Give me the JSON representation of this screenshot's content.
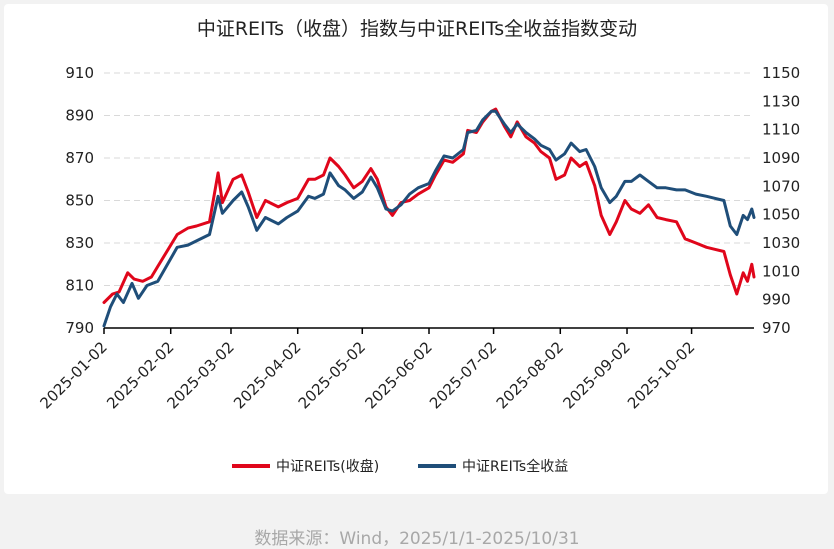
{
  "chart_data": {
    "type": "line",
    "title": "中证REITs（收盘）指数与中证REITs全收益指数变动",
    "source": "数据来源：Wind，2025/1/1-2025/10/31",
    "x_ticks": [
      "2025-01-02",
      "2025-02-02",
      "2025-03-02",
      "2025-04-02",
      "2025-05-02",
      "2025-06-02",
      "2025-07-02",
      "2025-08-02",
      "2025-09-02",
      "2025-10-02"
    ],
    "x_range": [
      "2025-01-02",
      "2025-10-31"
    ],
    "y_left": {
      "min": 790,
      "max": 910,
      "ticks": [
        "790",
        "810",
        "830",
        "850",
        "870",
        "890",
        "910"
      ]
    },
    "y_right": {
      "min": 970,
      "max": 1150,
      "ticks": [
        "970",
        "990",
        "1010",
        "1030",
        "1050",
        "1070",
        "1090",
        "1110",
        "1130",
        "1150"
      ]
    },
    "grid": "horizontal dashed",
    "legend_position": "bottom",
    "series": [
      {
        "name": "中证REITs(收盘)",
        "axis": "left",
        "color": "#e0061b",
        "points": [
          [
            "2025-01-02",
            802
          ],
          [
            "2025-01-06",
            806
          ],
          [
            "2025-01-09",
            807
          ],
          [
            "2025-01-13",
            816
          ],
          [
            "2025-01-16",
            813
          ],
          [
            "2025-01-20",
            812
          ],
          [
            "2025-01-24",
            814
          ],
          [
            "2025-01-27",
            819
          ],
          [
            "2025-02-05",
            834
          ],
          [
            "2025-02-10",
            837
          ],
          [
            "2025-02-14",
            838
          ],
          [
            "2025-02-20",
            840
          ],
          [
            "2025-02-24",
            863
          ],
          [
            "2025-02-26",
            849
          ],
          [
            "2025-03-03",
            860
          ],
          [
            "2025-03-07",
            862
          ],
          [
            "2025-03-10",
            854
          ],
          [
            "2025-03-14",
            842
          ],
          [
            "2025-03-18",
            850
          ],
          [
            "2025-03-24",
            847
          ],
          [
            "2025-03-28",
            849
          ],
          [
            "2025-04-02",
            851
          ],
          [
            "2025-04-07",
            860
          ],
          [
            "2025-04-10",
            860
          ],
          [
            "2025-04-14",
            862
          ],
          [
            "2025-04-17",
            870
          ],
          [
            "2025-04-21",
            866
          ],
          [
            "2025-04-24",
            862
          ],
          [
            "2025-04-28",
            856
          ],
          [
            "2025-05-02",
            859
          ],
          [
            "2025-05-06",
            865
          ],
          [
            "2025-05-09",
            860
          ],
          [
            "2025-05-13",
            847
          ],
          [
            "2025-05-16",
            843
          ],
          [
            "2025-05-20",
            849
          ],
          [
            "2025-05-24",
            850
          ],
          [
            "2025-05-28",
            853
          ],
          [
            "2025-06-02",
            856
          ],
          [
            "2025-06-05",
            862
          ],
          [
            "2025-06-09",
            869
          ],
          [
            "2025-06-13",
            868
          ],
          [
            "2025-06-18",
            872
          ],
          [
            "2025-06-20",
            883
          ],
          [
            "2025-06-24",
            882
          ],
          [
            "2025-06-27",
            887
          ],
          [
            "2025-07-01",
            892
          ],
          [
            "2025-07-03",
            893
          ],
          [
            "2025-07-07",
            885
          ],
          [
            "2025-07-10",
            880
          ],
          [
            "2025-07-13",
            887
          ],
          [
            "2025-07-17",
            880
          ],
          [
            "2025-07-21",
            877
          ],
          [
            "2025-07-24",
            873
          ],
          [
            "2025-07-28",
            870
          ],
          [
            "2025-07-31",
            860
          ],
          [
            "2025-08-04",
            862
          ],
          [
            "2025-08-07",
            870
          ],
          [
            "2025-08-11",
            866
          ],
          [
            "2025-08-14",
            868
          ],
          [
            "2025-08-18",
            857
          ],
          [
            "2025-08-21",
            843
          ],
          [
            "2025-08-25",
            834
          ],
          [
            "2025-08-28",
            840
          ],
          [
            "2025-09-01",
            850
          ],
          [
            "2025-09-04",
            846
          ],
          [
            "2025-09-08",
            844
          ],
          [
            "2025-09-12",
            848
          ],
          [
            "2025-09-16",
            842
          ],
          [
            "2025-09-20",
            841
          ],
          [
            "2025-09-25",
            840
          ],
          [
            "2025-09-29",
            832
          ],
          [
            "2025-10-04",
            830
          ],
          [
            "2025-10-09",
            828
          ],
          [
            "2025-10-13",
            827
          ],
          [
            "2025-10-17",
            826
          ],
          [
            "2025-10-20",
            815
          ],
          [
            "2025-10-23",
            806
          ],
          [
            "2025-10-26",
            816
          ],
          [
            "2025-10-28",
            812
          ],
          [
            "2025-10-30",
            820
          ],
          [
            "2025-10-31",
            814
          ]
        ]
      },
      {
        "name": "中证REITs全收益",
        "axis": "left",
        "color": "#1f4e79",
        "points": [
          [
            "2025-01-02",
            791
          ],
          [
            "2025-01-05",
            800
          ],
          [
            "2025-01-08",
            806
          ],
          [
            "2025-01-11",
            802
          ],
          [
            "2025-01-15",
            811
          ],
          [
            "2025-01-18",
            804
          ],
          [
            "2025-01-22",
            810
          ],
          [
            "2025-01-27",
            812
          ],
          [
            "2025-02-05",
            828
          ],
          [
            "2025-02-10",
            829
          ],
          [
            "2025-02-14",
            831
          ],
          [
            "2025-02-20",
            834
          ],
          [
            "2025-02-24",
            852
          ],
          [
            "2025-02-26",
            844
          ],
          [
            "2025-03-03",
            850
          ],
          [
            "2025-03-07",
            854
          ],
          [
            "2025-03-10",
            847
          ],
          [
            "2025-03-14",
            836
          ],
          [
            "2025-03-18",
            842
          ],
          [
            "2025-03-24",
            839
          ],
          [
            "2025-03-28",
            842
          ],
          [
            "2025-04-02",
            845
          ],
          [
            "2025-04-07",
            852
          ],
          [
            "2025-04-10",
            851
          ],
          [
            "2025-04-14",
            853
          ],
          [
            "2025-04-17",
            863
          ],
          [
            "2025-04-21",
            857
          ],
          [
            "2025-04-24",
            855
          ],
          [
            "2025-04-28",
            851
          ],
          [
            "2025-05-02",
            854
          ],
          [
            "2025-05-06",
            861
          ],
          [
            "2025-05-09",
            856
          ],
          [
            "2025-05-13",
            846
          ],
          [
            "2025-05-16",
            845
          ],
          [
            "2025-05-20",
            848
          ],
          [
            "2025-05-24",
            853
          ],
          [
            "2025-05-28",
            856
          ],
          [
            "2025-06-02",
            858
          ],
          [
            "2025-06-05",
            864
          ],
          [
            "2025-06-09",
            871
          ],
          [
            "2025-06-13",
            870
          ],
          [
            "2025-06-18",
            874
          ],
          [
            "2025-06-20",
            882
          ],
          [
            "2025-06-24",
            883
          ],
          [
            "2025-06-27",
            888
          ],
          [
            "2025-07-01",
            892
          ],
          [
            "2025-07-03",
            892
          ],
          [
            "2025-07-07",
            886
          ],
          [
            "2025-07-10",
            882
          ],
          [
            "2025-07-13",
            886
          ],
          [
            "2025-07-17",
            882
          ],
          [
            "2025-07-21",
            879
          ],
          [
            "2025-07-24",
            876
          ],
          [
            "2025-07-28",
            874
          ],
          [
            "2025-07-31",
            869
          ],
          [
            "2025-08-04",
            872
          ],
          [
            "2025-08-07",
            877
          ],
          [
            "2025-08-11",
            873
          ],
          [
            "2025-08-14",
            874
          ],
          [
            "2025-08-18",
            866
          ],
          [
            "2025-08-21",
            856
          ],
          [
            "2025-08-25",
            849
          ],
          [
            "2025-08-28",
            852
          ],
          [
            "2025-09-01",
            859
          ],
          [
            "2025-09-04",
            859
          ],
          [
            "2025-09-08",
            862
          ],
          [
            "2025-09-12",
            859
          ],
          [
            "2025-09-16",
            856
          ],
          [
            "2025-09-20",
            856
          ],
          [
            "2025-09-25",
            855
          ],
          [
            "2025-09-29",
            855
          ],
          [
            "2025-10-04",
            853
          ],
          [
            "2025-10-09",
            852
          ],
          [
            "2025-10-13",
            851
          ],
          [
            "2025-10-17",
            850
          ],
          [
            "2025-10-20",
            838
          ],
          [
            "2025-10-23",
            834
          ],
          [
            "2025-10-26",
            843
          ],
          [
            "2025-10-28",
            841
          ],
          [
            "2025-10-30",
            846
          ],
          [
            "2025-10-31",
            842
          ]
        ]
      }
    ]
  }
}
